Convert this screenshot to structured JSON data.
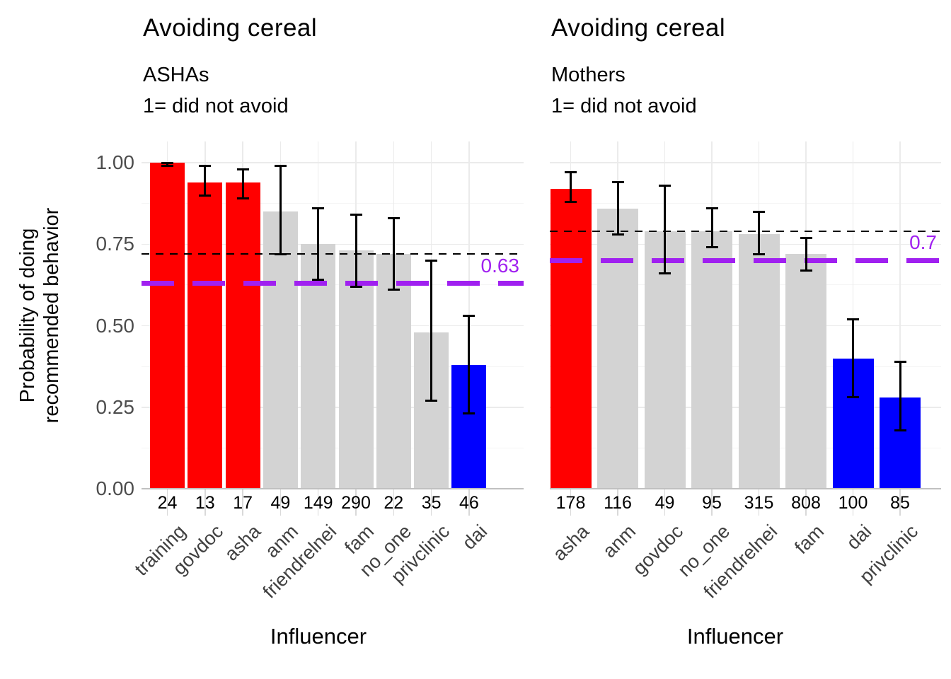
{
  "figure": {
    "y_axis_title_line1": "Probability of doing",
    "y_axis_title_line2": "recommended behavior",
    "y_tick_labels": [
      "1.00",
      "0.75",
      "0.50",
      "0.25",
      "0.00"
    ],
    "colors": {
      "bar_red": "#FF0000",
      "bar_gray": "#D3D3D3",
      "bar_blue": "#0000FF",
      "reference_purple": "#A020F0",
      "reference_black": "#000000",
      "axis_text": "#4D4D4D",
      "count_text": "#000000",
      "category_text": "#404040",
      "grid_major": "#EBEBEB",
      "grid_minor": "#F5F5F5",
      "axis_line": "#C0C0C0",
      "tick_mark": "#D9D9D9"
    }
  },
  "chart_data": [
    {
      "type": "bar",
      "panel": "ASHAs",
      "title": "Avoiding cereal",
      "subtitle_line1": "ASHAs",
      "subtitle_line2": "1= did not avoid",
      "xlabel": "Influencer",
      "ylabel": "Probability of doing recommended behavior",
      "ylim": [
        0,
        1.0
      ],
      "y_major_ticks": [
        0,
        0.25,
        0.5,
        0.75,
        1.0
      ],
      "y_minor_ticks": [
        0.125,
        0.375,
        0.625,
        0.875
      ],
      "grid": true,
      "categories": [
        "training",
        "govdoc",
        "asha",
        "anm",
        "friendrelnei",
        "fam",
        "no_one",
        "privclinic",
        "dai"
      ],
      "values": [
        1.0,
        0.94,
        0.94,
        0.85,
        0.75,
        0.73,
        0.72,
        0.48,
        0.38
      ],
      "ci_low": [
        0.99,
        0.9,
        0.89,
        0.72,
        0.64,
        0.62,
        0.61,
        0.27,
        0.23
      ],
      "ci_high": [
        1.0,
        0.99,
        0.98,
        0.99,
        0.86,
        0.84,
        0.83,
        0.7,
        0.53
      ],
      "n_labels": [
        24,
        13,
        17,
        49,
        149,
        290,
        22,
        35,
        46
      ],
      "bar_colors": [
        "#FF0000",
        "#FF0000",
        "#FF0000",
        "#D3D3D3",
        "#D3D3D3",
        "#D3D3D3",
        "#D3D3D3",
        "#D3D3D3",
        "#0000FF"
      ],
      "ref_line_black_dashed": 0.72,
      "ref_line_purple_dashed": 0.63,
      "ref_line_purple_label": "0.63"
    },
    {
      "type": "bar",
      "panel": "Mothers",
      "title": "Avoiding cereal",
      "subtitle_line1": "Mothers",
      "subtitle_line2": "1= did not avoid",
      "xlabel": "Influencer",
      "ylabel": "Probability of doing recommended behavior",
      "ylim": [
        0,
        1.0
      ],
      "y_major_ticks": [
        0,
        0.25,
        0.5,
        0.75,
        1.0
      ],
      "y_minor_ticks": [
        0.125,
        0.375,
        0.625,
        0.875
      ],
      "grid": true,
      "categories": [
        "asha",
        "anm",
        "govdoc",
        "no_one",
        "friendrelnei",
        "fam",
        "dai",
        "privclinic"
      ],
      "values": [
        0.92,
        0.86,
        0.79,
        0.79,
        0.78,
        0.72,
        0.4,
        0.28
      ],
      "ci_low": [
        0.88,
        0.78,
        0.66,
        0.74,
        0.72,
        0.67,
        0.28,
        0.18
      ],
      "ci_high": [
        0.97,
        0.94,
        0.93,
        0.86,
        0.85,
        0.77,
        0.52,
        0.39
      ],
      "n_labels": [
        178,
        116,
        49,
        95,
        315,
        808,
        100,
        85
      ],
      "bar_colors": [
        "#FF0000",
        "#D3D3D3",
        "#D3D3D3",
        "#D3D3D3",
        "#D3D3D3",
        "#D3D3D3",
        "#0000FF",
        "#0000FF"
      ],
      "ref_line_black_dashed": 0.79,
      "ref_line_purple_dashed": 0.7,
      "ref_line_purple_label": "0.7"
    }
  ]
}
